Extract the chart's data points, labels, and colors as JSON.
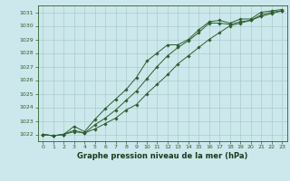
{
  "title": "Graphe pression niveau de la mer (hPa)",
  "xlim": [
    -0.5,
    23.5
  ],
  "ylim": [
    1021.5,
    1031.5
  ],
  "yticks": [
    1022,
    1023,
    1024,
    1025,
    1026,
    1027,
    1028,
    1029,
    1030,
    1031
  ],
  "xticks": [
    0,
    1,
    2,
    3,
    4,
    5,
    6,
    7,
    8,
    9,
    10,
    11,
    12,
    13,
    14,
    15,
    16,
    17,
    18,
    19,
    20,
    21,
    22,
    23
  ],
  "background_color": "#cce8ec",
  "grid_color": "#aacccc",
  "line_color": "#2d5e2d",
  "title_color": "#1a3a1a",
  "series": [
    [
      1022.0,
      1021.9,
      1022.0,
      1022.6,
      1022.2,
      1023.1,
      1023.9,
      1024.6,
      1025.3,
      1026.2,
      1027.4,
      1028.0,
      1028.6,
      1028.6,
      1029.0,
      1029.7,
      1030.3,
      1030.4,
      1030.2,
      1030.5,
      1030.5,
      1031.0,
      1031.1,
      1031.2
    ],
    [
      1022.0,
      1021.9,
      1022.0,
      1022.3,
      1022.1,
      1022.7,
      1023.2,
      1023.8,
      1024.5,
      1025.2,
      1026.1,
      1027.0,
      1027.8,
      1028.4,
      1028.9,
      1029.5,
      1030.2,
      1030.2,
      1030.1,
      1030.3,
      1030.4,
      1030.8,
      1031.0,
      1031.1
    ],
    [
      1022.0,
      1021.9,
      1022.0,
      1022.2,
      1022.1,
      1022.4,
      1022.8,
      1023.2,
      1023.8,
      1024.2,
      1025.0,
      1025.7,
      1026.4,
      1027.2,
      1027.8,
      1028.4,
      1029.0,
      1029.5,
      1030.0,
      1030.2,
      1030.4,
      1030.7,
      1030.9,
      1031.1
    ]
  ]
}
